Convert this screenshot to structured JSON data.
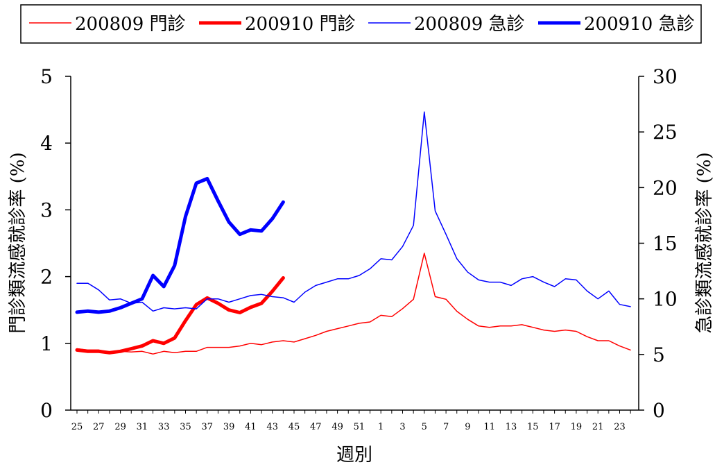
{
  "chart_data": {
    "type": "line",
    "legend": {
      "placement": "top",
      "entries": [
        {
          "label": "200809 門診",
          "color": "#ff0000",
          "weight": "thin"
        },
        {
          "label": "200910 門診",
          "color": "#ff0000",
          "weight": "thick"
        },
        {
          "label": "200809 急診",
          "color": "#0000ff",
          "weight": "thin"
        },
        {
          "label": "200910 急診",
          "color": "#0000ff",
          "weight": "thick"
        }
      ]
    },
    "xlabel": "週別",
    "ylabel_left": "門診類流感就診率 (%)",
    "ylabel_right": "急診類流感就診率 (%)",
    "ylim_left": [
      0,
      5
    ],
    "ylim_right": [
      0,
      30
    ],
    "yticks_left": [
      "0",
      "1",
      "2",
      "3",
      "4",
      "5"
    ],
    "yticks_right": [
      "0",
      "5",
      "10",
      "15",
      "20",
      "25",
      "30"
    ],
    "x_weeks": [
      25,
      26,
      27,
      28,
      29,
      30,
      31,
      32,
      33,
      34,
      35,
      36,
      37,
      38,
      39,
      40,
      41,
      42,
      43,
      44,
      45,
      46,
      47,
      48,
      49,
      50,
      51,
      52,
      1,
      2,
      3,
      4,
      5,
      6,
      7,
      8,
      9,
      10,
      11,
      12,
      13,
      14,
      15,
      16,
      17,
      18,
      19,
      20,
      21,
      22,
      23,
      24
    ],
    "x_tick_labels": [
      "25",
      "27",
      "29",
      "31",
      "33",
      "35",
      "37",
      "39",
      "41",
      "43",
      "45",
      "47",
      "49",
      "51",
      "1",
      "3",
      "5",
      "7",
      "9",
      "11",
      "13",
      "15",
      "17",
      "19",
      "21",
      "23"
    ],
    "series": [
      {
        "name": "200809 門診",
        "axis": "left",
        "color": "#ff0000",
        "width": 1.5,
        "values": [
          0.92,
          0.9,
          0.9,
          0.87,
          0.88,
          0.87,
          0.88,
          0.84,
          0.88,
          0.86,
          0.88,
          0.88,
          0.94,
          0.94,
          0.94,
          0.96,
          1.0,
          0.98,
          1.02,
          1.04,
          1.02,
          1.07,
          1.12,
          1.18,
          1.22,
          1.26,
          1.3,
          1.32,
          1.42,
          1.4,
          1.52,
          1.66,
          2.35,
          1.7,
          1.66,
          1.48,
          1.36,
          1.26,
          1.24,
          1.26,
          1.26,
          1.28,
          1.24,
          1.2,
          1.18,
          1.2,
          1.18,
          1.1,
          1.04,
          1.04,
          0.96,
          0.9
        ]
      },
      {
        "name": "200910 門診",
        "axis": "left",
        "color": "#ff0000",
        "width": 5,
        "values": [
          0.9,
          0.88,
          0.88,
          0.86,
          0.88,
          0.92,
          0.96,
          1.04,
          1.0,
          1.08,
          1.34,
          1.58,
          1.68,
          1.6,
          1.5,
          1.46,
          1.54,
          1.6,
          1.78,
          1.98
        ]
      },
      {
        "name": "200809 急診",
        "axis": "right",
        "color": "#0000ff",
        "width": 1.5,
        "values": [
          11.4,
          11.4,
          10.8,
          9.9,
          10.0,
          9.6,
          9.7,
          8.9,
          9.2,
          9.1,
          9.2,
          9.1,
          10.0,
          10.0,
          9.7,
          10.0,
          10.3,
          10.4,
          10.2,
          10.1,
          9.7,
          10.6,
          11.2,
          11.5,
          11.8,
          11.8,
          12.1,
          12.7,
          13.6,
          13.5,
          14.7,
          16.6,
          26.8,
          17.9,
          15.8,
          13.6,
          12.4,
          11.7,
          11.5,
          11.5,
          11.2,
          11.8,
          12.0,
          11.5,
          11.1,
          11.8,
          11.7,
          10.7,
          10.0,
          10.7,
          9.5,
          9.3
        ]
      },
      {
        "name": "200910 急診",
        "axis": "right",
        "color": "#0000ff",
        "width": 5,
        "values": [
          8.8,
          8.9,
          8.8,
          8.9,
          9.2,
          9.6,
          10.0,
          12.1,
          11.1,
          13.0,
          17.4,
          20.4,
          20.8,
          18.8,
          16.9,
          15.8,
          16.2,
          16.1,
          17.2,
          18.7
        ]
      }
    ],
    "grid": false
  }
}
